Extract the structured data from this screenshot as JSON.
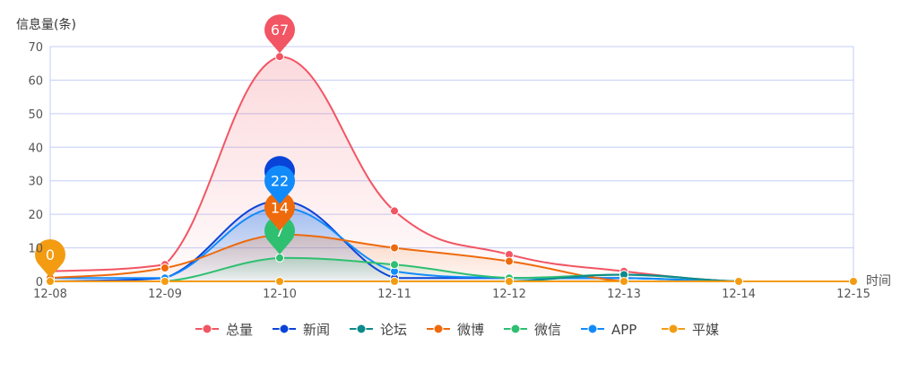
{
  "chart_data": {
    "type": "line",
    "ylabel": "信息量(条)",
    "xlabel": "时间",
    "ylim": [
      0,
      70
    ],
    "yticks": [
      0,
      10,
      20,
      30,
      40,
      50,
      60,
      70
    ],
    "categories": [
      "12-08",
      "12-09",
      "12-10",
      "12-11",
      "12-12",
      "12-13",
      "12-14",
      "12-15"
    ],
    "grid": true,
    "legend_position": "bottom",
    "series": [
      {
        "name": "总量",
        "color": "#f25563",
        "values": [
          3,
          5,
          67,
          21,
          8,
          3,
          0,
          0
        ],
        "max_label": "67",
        "area": true
      },
      {
        "name": "新闻",
        "color": "#0a43d8",
        "values": [
          0,
          1,
          24,
          1,
          1,
          1,
          0,
          0
        ],
        "max_label": "24",
        "area": true
      },
      {
        "name": "论坛",
        "color": "#0e8a8a",
        "values": [
          0,
          0,
          0,
          0,
          0,
          2,
          0,
          0
        ],
        "max_label": "",
        "area": false
      },
      {
        "name": "微博",
        "color": "#ee6a0c",
        "values": [
          1,
          4,
          14,
          10,
          6,
          0,
          0,
          0
        ],
        "max_label": "14",
        "area": true
      },
      {
        "name": "微信",
        "color": "#2fbf71",
        "values": [
          0,
          0,
          7,
          5,
          1,
          2,
          0,
          0
        ],
        "max_label": "7",
        "area": true
      },
      {
        "name": "APP",
        "color": "#128bfa",
        "values": [
          1,
          1,
          22,
          3,
          1,
          1,
          0,
          0
        ],
        "max_label": "22",
        "area": true
      },
      {
        "name": "平媒",
        "color": "#f39c12",
        "values": [
          0,
          0,
          0,
          0,
          0,
          0,
          0,
          0
        ],
        "max_label": "0",
        "area": false
      }
    ]
  }
}
